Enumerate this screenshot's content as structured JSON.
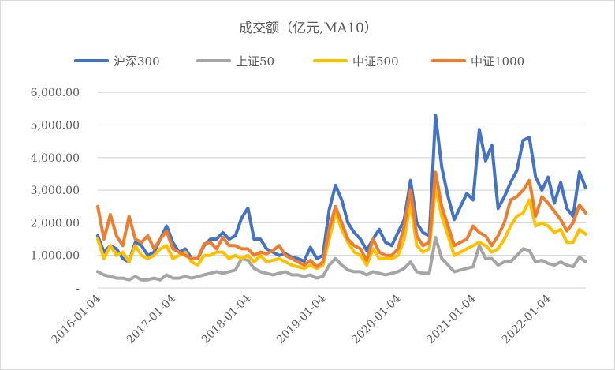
{
  "chart_data": {
    "type": "line",
    "title": "成交额（亿元,MA10）",
    "xlabel": "",
    "ylabel": "",
    "ylim": [
      0,
      6000
    ],
    "y_ticks": [
      0,
      1000,
      2000,
      3000,
      4000,
      5000,
      6000
    ],
    "y_tick_labels": [
      "-",
      "1,000.00",
      "2,000.00",
      "3,000.00",
      "4,000.00",
      "5,000.00",
      "6,000.00"
    ],
    "x_tick_labels": [
      "2016-01-04",
      "2017-01-04",
      "2018-01-04",
      "2019-01-04",
      "2020-01-04",
      "2021-01-04",
      "2022-01-04"
    ],
    "x_range": [
      "2016-01",
      "2022-07"
    ],
    "grid": "horizontal",
    "legend_position": "top",
    "x_start": "2016-01",
    "x_step": "month",
    "series": [
      {
        "name": "沪深300",
        "color": "#4472C4",
        "values": [
          1600,
          1100,
          1300,
          1200,
          900,
          800,
          1400,
          1300,
          1000,
          1100,
          1500,
          1900,
          1400,
          1100,
          1200,
          900,
          900,
          1300,
          1500,
          1500,
          1700,
          1500,
          1600,
          2150,
          2450,
          1500,
          1500,
          1200,
          1100,
          1000,
          1050,
          950,
          900,
          820,
          1250,
          900,
          1000,
          2400,
          3150,
          2700,
          2000,
          1700,
          1500,
          1150,
          1500,
          1800,
          1400,
          1300,
          1700,
          2100,
          3300,
          2000,
          1700,
          1600,
          5300,
          3700,
          2800,
          2100,
          2500,
          2900,
          2700,
          4860,
          3900,
          4380,
          2440,
          2800,
          3240,
          3600,
          4530,
          4620,
          3410,
          3000,
          3400,
          2600,
          3240,
          2440,
          2200,
          3560,
          3070
        ]
      },
      {
        "name": "上证50",
        "color": "#A5A5A5",
        "values": [
          500,
          400,
          350,
          300,
          300,
          250,
          350,
          250,
          250,
          300,
          250,
          400,
          300,
          300,
          350,
          300,
          350,
          400,
          450,
          500,
          450,
          500,
          550,
          900,
          850,
          600,
          500,
          450,
          400,
          450,
          500,
          400,
          400,
          350,
          400,
          300,
          350,
          700,
          900,
          700,
          550,
          500,
          500,
          400,
          500,
          450,
          400,
          450,
          500,
          600,
          800,
          500,
          450,
          450,
          1550,
          900,
          700,
          500,
          550,
          600,
          650,
          1300,
          900,
          900,
          700,
          800,
          800,
          1000,
          1200,
          1150,
          800,
          850,
          750,
          700,
          800,
          700,
          650,
          950,
          800
        ]
      },
      {
        "name": "中证500",
        "color": "#FFC000",
        "values": [
          1500,
          900,
          1300,
          1000,
          1100,
          800,
          1300,
          1000,
          900,
          1000,
          1200,
          1300,
          900,
          1000,
          1100,
          800,
          700,
          1000,
          1000,
          1100,
          1100,
          900,
          1000,
          900,
          1000,
          800,
          1000,
          800,
          850,
          900,
          800,
          700,
          650,
          600,
          700,
          600,
          700,
          1500,
          2300,
          1800,
          1400,
          1100,
          1000,
          700,
          1200,
          900,
          900,
          900,
          1000,
          1500,
          2600,
          1300,
          1100,
          1200,
          3100,
          2200,
          1600,
          1000,
          1100,
          1200,
          1300,
          1400,
          1300,
          1100,
          1200,
          1500,
          1900,
          2200,
          2300,
          2700,
          1900,
          2000,
          1900,
          1700,
          1800,
          1400,
          1400,
          1800,
          1650
        ]
      },
      {
        "name": "中证1000",
        "color": "#ED7D31",
        "values": [
          2500,
          1500,
          2250,
          1600,
          1300,
          2200,
          1500,
          1400,
          1600,
          1200,
          1500,
          1750,
          1200,
          1100,
          1000,
          900,
          900,
          1350,
          1400,
          1200,
          1550,
          1300,
          1300,
          1200,
          1200,
          1000,
          1100,
          1050,
          1150,
          1300,
          1000,
          900,
          800,
          700,
          850,
          650,
          800,
          1800,
          2500,
          2000,
          1500,
          1300,
          1200,
          850,
          1500,
          1100,
          1000,
          1000,
          1200,
          1900,
          3000,
          1600,
          1300,
          1400,
          3550,
          2500,
          1900,
          1300,
          1400,
          1500,
          1900,
          1700,
          1600,
          1300,
          1600,
          2000,
          2700,
          2800,
          3000,
          3300,
          2200,
          2800,
          2600,
          2350,
          2100,
          1750,
          2000,
          2550,
          2300
        ]
      }
    ]
  }
}
